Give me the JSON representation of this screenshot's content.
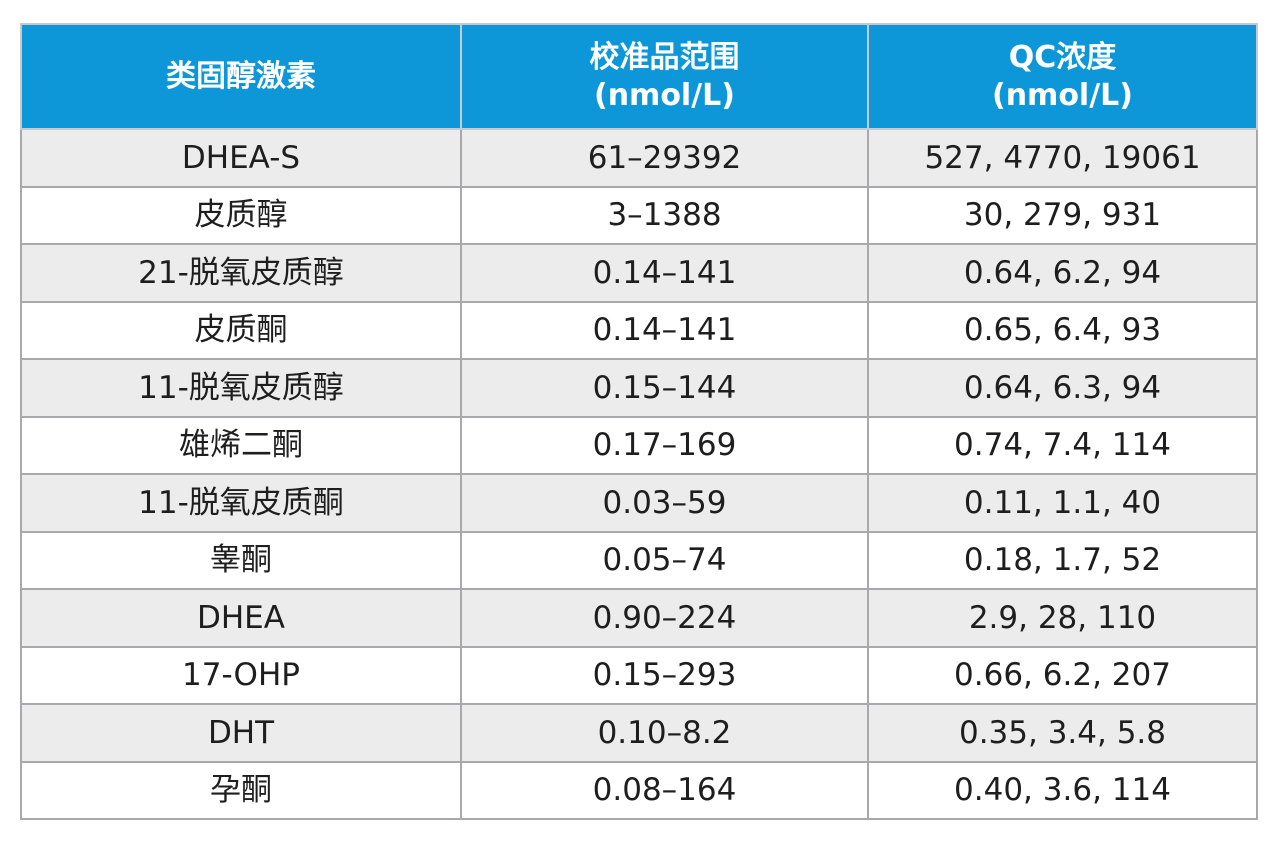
{
  "table": {
    "headers": [
      {
        "lines": [
          "类固醇激素"
        ]
      },
      {
        "lines": [
          "校准品范围",
          "(nmol/L)"
        ]
      },
      {
        "lines": [
          "QC浓度",
          "(nmol/L)"
        ]
      }
    ],
    "rows": [
      [
        "DHEA-S",
        "61–29392",
        "527, 4770, 19061"
      ],
      [
        "皮质醇",
        "3–1388",
        "30, 279, 931"
      ],
      [
        "21-脱氧皮质醇",
        "0.14–141",
        "0.64, 6.2, 94"
      ],
      [
        "皮质酮",
        "0.14–141",
        "0.65, 6.4, 93"
      ],
      [
        "11-脱氧皮质醇",
        "0.15–144",
        "0.64, 6.3, 94"
      ],
      [
        "雄烯二酮",
        "0.17–169",
        "0.74, 7.4, 114"
      ],
      [
        "11-脱氧皮质酮",
        "0.03–59",
        "0.11, 1.1, 40"
      ],
      [
        "睾酮",
        "0.05–74",
        "0.18, 1.7, 52"
      ],
      [
        "DHEA",
        "0.90–224",
        "2.9, 28, 110"
      ],
      [
        "17-OHP",
        "0.15–293",
        "0.66, 6.2, 207"
      ],
      [
        "DHT",
        "0.10–8.2",
        "0.35, 3.4, 5.8"
      ],
      [
        "孕酮",
        "0.08–164",
        "0.40, 3.6, 114"
      ]
    ]
  },
  "colors": {
    "header_bg": "#0d97d8",
    "header_text": "#ffffff",
    "row_alt_bg": "#ececed",
    "border": "#a9a9ad"
  }
}
